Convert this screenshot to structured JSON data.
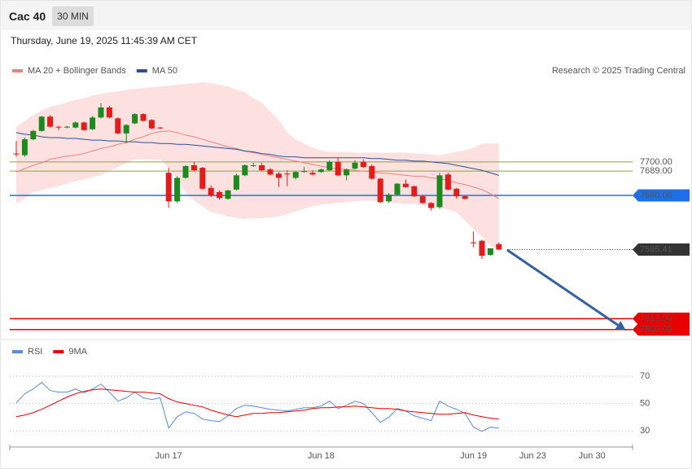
{
  "header": {
    "symbol": "Cac 40",
    "interval": "30 MIN",
    "timestamp": "Thursday, June 19, 2025 11:45:39 AM CET"
  },
  "chart_data": [
    {
      "type": "candlestick",
      "source": "Research © 2025 Trading Central",
      "categories": [
        null,
        null,
        null,
        null,
        null,
        null,
        null,
        null,
        null,
        null,
        null,
        null,
        null,
        null,
        null,
        null,
        null,
        null,
        "Jun 17",
        null,
        null,
        null,
        null,
        null,
        null,
        null,
        null,
        null,
        null,
        null,
        null,
        null,
        null,
        null,
        null,
        null,
        "Jun 18",
        null,
        null,
        null,
        null,
        null,
        null,
        null,
        null,
        null,
        null,
        null,
        null,
        null,
        null,
        null,
        null,
        null,
        "Jun 19",
        null,
        null,
        null,
        null,
        null,
        null,
        "Jun 23",
        null,
        null,
        null,
        null,
        null,
        null,
        "Jun 30",
        null,
        null,
        null,
        null
      ],
      "up_color": "#1c8a1c",
      "down_color": "#e21b1b",
      "ohlc": {
        "open": [
          7710,
          7708,
          7727,
          7737,
          7754,
          7742,
          7741,
          7741,
          7747,
          7739,
          7753,
          7765,
          7752,
          7734,
          7746,
          7757,
          7750,
          7741,
          7687,
          7653,
          7681,
          7696,
          7693,
          7669,
          7664,
          7656,
          7667,
          7684,
          7695,
          7696,
          7691,
          7686,
          7686,
          7681,
          7688,
          7687,
          7688,
          7690,
          7700,
          7684,
          7692,
          7700,
          7695,
          7680,
          7653,
          7661,
          7674,
          7671,
          7659,
          7651,
          7646,
          7685,
          7668,
          7659,
          7604,
          7606,
          7589,
          7602,
          null,
          null,
          null,
          null,
          null,
          null,
          null,
          null,
          null,
          null,
          null,
          null,
          null,
          null,
          null
        ],
        "high": [
          7725,
          7729,
          7738,
          7755,
          7756,
          7743,
          7743,
          7748,
          7748,
          7755,
          7770,
          7767,
          7753,
          7745,
          7758,
          7758,
          7751,
          7742,
          7693,
          7683,
          7696,
          7700,
          7694,
          7672,
          7666,
          7667,
          7686,
          7697,
          7699,
          7699,
          7693,
          7688,
          7690,
          7689,
          7694,
          7690,
          7692,
          7702,
          7705,
          7692,
          7702,
          7703,
          7697,
          7681,
          7663,
          7675,
          7679,
          7672,
          7660,
          7652,
          7687,
          7687,
          7669,
          7660,
          7617,
          7607,
          7597,
          7604,
          null,
          null,
          null,
          null,
          null,
          null,
          null,
          null,
          null,
          null,
          null,
          null,
          null,
          null,
          null
        ],
        "low": [
          7706,
          7706,
          7726,
          7736,
          7741,
          7738,
          7740,
          7740,
          7737,
          7738,
          7752,
          7752,
          7733,
          7722,
          7745,
          7748,
          7739,
          7739,
          7645,
          7651,
          7680,
          7689,
          7667,
          7658,
          7655,
          7655,
          7666,
          7683,
          7694,
          7689,
          7684,
          7670,
          7671,
          7679,
          7687,
          7684,
          7687,
          7689,
          7683,
          7678,
          7691,
          7693,
          7679,
          7651,
          7651,
          7660,
          7669,
          7658,
          7650,
          7642,
          7644,
          7666,
          7656,
          7655,
          7598,
          7584,
          7588,
          7595,
          null,
          null,
          null,
          null,
          null,
          null,
          null,
          null,
          null,
          null,
          null,
          null,
          null,
          null,
          null
        ],
        "close": [
          7709,
          7727,
          7737,
          7754,
          7742,
          7741,
          7742,
          7747,
          7738,
          7753,
          7765,
          7753,
          7734,
          7744,
          7757,
          7749,
          7740,
          7740,
          7653,
          7681,
          7695,
          7690,
          7668,
          7660,
          7657,
          7666,
          7684,
          7696,
          7696,
          7690,
          7685,
          7681,
          7685,
          7688,
          7689,
          7685,
          7691,
          7700,
          7684,
          7691,
          7699,
          7694,
          7680,
          7652,
          7661,
          7674,
          7670,
          7659,
          7651,
          7645,
          7684,
          7667,
          7659,
          7656,
          7603,
          7588,
          7597,
          7595.41,
          null,
          null,
          null,
          null,
          null,
          null,
          null,
          null,
          null,
          null,
          null,
          null,
          null,
          null,
          null
        ]
      },
      "series": [
        {
          "name": "MA 20 + Bollinger Bands",
          "color": "#f08080",
          "fill": "#fde1e1",
          "values": [
            7688,
            7692,
            7696,
            7699,
            7703,
            7705,
            7707,
            7708,
            7710,
            7713,
            7716,
            7718,
            7721,
            7723,
            7727,
            7730,
            7734,
            7736,
            7737,
            7735,
            7732,
            7730,
            7727,
            7724,
            7721,
            7718,
            7716,
            7713,
            7711,
            7709,
            7707,
            7705,
            7703,
            7701,
            7699,
            7697,
            7695,
            7693,
            7692,
            7691,
            7690,
            7689,
            7688,
            7687,
            7686,
            7685,
            7684,
            7683,
            7683,
            7681,
            7680,
            7678,
            7675,
            7673,
            7670,
            7667,
            7662,
            7656,
            null,
            null,
            null,
            null,
            null,
            null,
            null,
            null,
            null,
            null,
            null,
            null,
            null,
            null,
            null
          ],
          "upper": [
            7742,
            7749,
            7756,
            7761,
            7766,
            7768,
            7771,
            7774,
            7776,
            7779,
            7781,
            7783,
            7784,
            7786,
            7787,
            7788,
            7789,
            7790,
            7791,
            7792,
            7793,
            7794,
            7795,
            7794,
            7792,
            7790,
            7786,
            7783,
            7776,
            7771,
            7760,
            7750,
            7735,
            7727,
            7722,
            7717,
            7714,
            7712,
            7712,
            7712,
            7711,
            7711,
            7711,
            7711,
            7711,
            7711,
            7711,
            7710,
            7710,
            7709,
            7708,
            7710,
            7712,
            7714,
            7717,
            7722,
            7722,
            7722,
            null,
            null,
            null,
            null,
            null,
            null,
            null,
            null,
            null,
            null,
            null,
            null,
            null,
            null,
            null
          ],
          "lower": [
            7650,
            7656,
            7664,
            7666,
            7669,
            7671,
            7674,
            7677,
            7679,
            7682,
            7684,
            7689,
            7694,
            7699,
            7703,
            7703,
            7703,
            7703,
            7693,
            7679,
            7664,
            7654,
            7647,
            7640,
            7638,
            7635,
            7633,
            7632,
            7633,
            7633,
            7634,
            7635,
            7638,
            7641,
            7644,
            7647,
            7649,
            7650,
            7651,
            7652,
            7653,
            7654,
            7654,
            7653,
            7652,
            7651,
            7650,
            7650,
            7648,
            7647,
            7645,
            7643,
            7640,
            7630,
            7620,
            7611,
            7600,
            7596,
            null,
            null,
            null,
            null,
            null,
            null,
            null,
            null,
            null,
            null,
            null,
            null,
            null,
            null,
            null
          ]
        },
        {
          "name": "MA 50",
          "color": "#2e4f8f",
          "values": [
            7735,
            7733,
            7732,
            7730,
            7729,
            7729,
            7728,
            7728,
            7727,
            7726,
            7726,
            7725,
            7725,
            7724,
            7724,
            7723,
            7723,
            7722,
            7722,
            7721,
            7721,
            7720,
            7719,
            7718,
            7717,
            7716,
            7715,
            7713,
            7712,
            7710,
            7709,
            7707,
            7706,
            7706,
            7705,
            7705,
            7705,
            7705,
            7705,
            7705,
            7705,
            7705,
            7704,
            7704,
            7703,
            7702,
            7702,
            7701,
            7701,
            7700,
            7699,
            7698,
            7696,
            7694,
            7692,
            7690,
            7687,
            7684,
            null,
            null,
            null,
            null,
            null,
            null,
            null,
            null,
            null,
            null,
            null,
            null,
            null,
            null,
            null
          ]
        }
      ],
      "ylim": [
        7492,
        7797
      ],
      "yticks": [
        {
          "value": 7700,
          "label": "7700.00",
          "color": "#8aa63a",
          "badge": false,
          "style": "solid"
        },
        {
          "value": 7689,
          "label": "7689.00",
          "color": "#8aa63a",
          "badge": false,
          "style": "solid"
        },
        {
          "value": 7660,
          "label": "7660.00",
          "color": "#1e6fe8",
          "badge": true,
          "style": "solid"
        },
        {
          "value": 7595.41,
          "label": "7595.41",
          "color": "#333333",
          "badge": true,
          "style": "dotted"
        },
        {
          "value": 7513,
          "label": "7513.00",
          "color": "#e80000",
          "badge": true,
          "style": "solid"
        },
        {
          "value": 7500,
          "label": "7500.00",
          "color": "#e80000",
          "badge": true,
          "style": "solid"
        }
      ]
    },
    {
      "type": "line",
      "series": [
        {
          "name": "RSI",
          "color": "#5b8bd9",
          "values": [
            50.6,
            57.2,
            60.7,
            65.5,
            59.6,
            58.4,
            58.4,
            60.7,
            57.8,
            60.7,
            64.3,
            58.4,
            51.8,
            54.2,
            58.4,
            54.2,
            53,
            54.2,
            32.1,
            40.4,
            44,
            42.8,
            38.7,
            37.5,
            36.9,
            41,
            46.4,
            48.8,
            48.2,
            47,
            45.8,
            45.2,
            44.6,
            45.8,
            47,
            47,
            48.2,
            51.8,
            46.4,
            48.8,
            51.8,
            50,
            43.4,
            36.3,
            39.9,
            46.4,
            44.6,
            41,
            39.3,
            37.5,
            51.8,
            48.2,
            45.8,
            42.8,
            32.7,
            29.7,
            32.7,
            32.1,
            null,
            null,
            null,
            null,
            null,
            null,
            null,
            null,
            null,
            null,
            null,
            null,
            null,
            null,
            null
          ]
        },
        {
          "name": "9MA",
          "color": "#e00000",
          "values": [
            40.4,
            41.6,
            43.4,
            45.8,
            48.8,
            51.8,
            54.8,
            57.2,
            59,
            60.1,
            60.7,
            60.1,
            59.6,
            59,
            58.4,
            58.4,
            57.8,
            57.2,
            53.6,
            51.2,
            50,
            48.8,
            47.6,
            45.2,
            43.4,
            41.6,
            40.4,
            41.6,
            42.8,
            42.8,
            43.4,
            43.4,
            44,
            44.6,
            45.2,
            46.4,
            47,
            47,
            47.6,
            47.6,
            48.2,
            47.6,
            47,
            46.4,
            46.4,
            45.8,
            44.6,
            44,
            43.4,
            42.8,
            42.2,
            42.2,
            42.8,
            43.4,
            41.6,
            40.4,
            39.3,
            38.7,
            null,
            null,
            null,
            null,
            null,
            null,
            null,
            null,
            null,
            null,
            null,
            null,
            null,
            null,
            null
          ]
        }
      ],
      "ylim": [
        20,
        82
      ],
      "yticks": [
        30,
        50,
        70
      ],
      "grid": true
    }
  ]
}
